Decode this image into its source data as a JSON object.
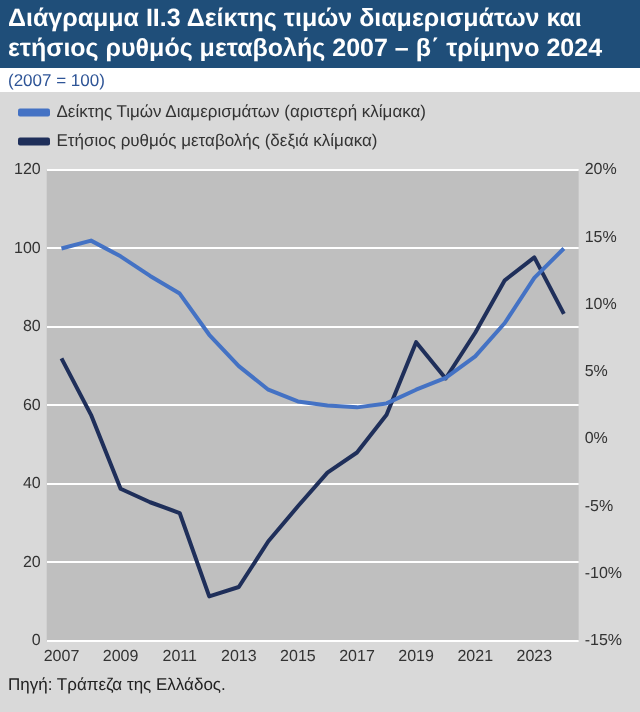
{
  "chart_data": {
    "type": "line",
    "title": "Διάγραμμα ΙΙ.3 Δείκτης τιμών διαμερισμάτων και ετήσιος ρυθμός μεταβολής 2007 – β΄ τρίμηνο 2024",
    "subtitle": "(2007 = 100)",
    "categories": [
      "2007",
      null,
      "2009",
      null,
      "2011",
      null,
      "2013",
      null,
      "2015",
      null,
      "2017",
      null,
      "2019",
      null,
      "2021",
      null,
      "2023",
      null
    ],
    "series": [
      {
        "name": "Δείκτης Τιμών Διαμερισμάτων (αριστερή κλίμακα)",
        "color": "#4472c4",
        "values": [
          100,
          102,
          98,
          93,
          88.5,
          78,
          70,
          64,
          61,
          60,
          59.5,
          60.5,
          64,
          67,
          72.5,
          81,
          92.5,
          100
        ]
      },
      {
        "name": "Ετήσιος ρυθμός μεταβολής (δεξιά κλίμακα)",
        "color": "#1f2f5a",
        "axis": "y2",
        "values": [
          6,
          1.8,
          -3.7,
          -4.7,
          -5.5,
          -11.7,
          -11,
          -7.6,
          -5,
          -2.5,
          -1,
          1.8,
          7.2,
          4.5,
          7.9,
          11.8,
          13.5,
          9.3
        ]
      }
    ],
    "ylim": [
      0,
      120
    ],
    "yticks": [
      0,
      20,
      40,
      60,
      80,
      100,
      120
    ],
    "y2lim": [
      -15,
      20
    ],
    "y2ticks": [
      {
        "value": -15,
        "label": "-15%"
      },
      {
        "value": -10,
        "label": "-10%"
      },
      {
        "value": -5,
        "label": "-5%"
      },
      {
        "value": 0,
        "label": "0%"
      },
      {
        "value": 5,
        "label": "5%"
      },
      {
        "value": 10,
        "label": "10%"
      },
      {
        "value": 15,
        "label": "15%"
      },
      {
        "value": 20,
        "label": "20%"
      }
    ],
    "grid": "y",
    "legend": "top",
    "marker": "none",
    "line_style": "solid",
    "annotations": [
      "Πηγή: Τράπεζα της Ελλάδος."
    ]
  }
}
